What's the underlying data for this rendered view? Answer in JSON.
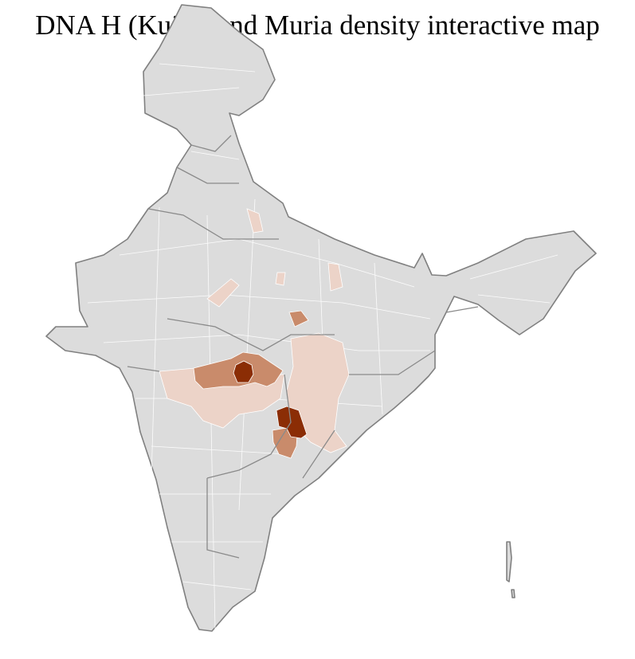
{
  "title": "DNA H (Kui) Gond Muria density interactive map",
  "colors": {
    "base": "#dcdcdc",
    "border": "#808080",
    "low": "#ecd3c8",
    "medium": "#c98b6b",
    "high": "#8b2d05"
  }
}
